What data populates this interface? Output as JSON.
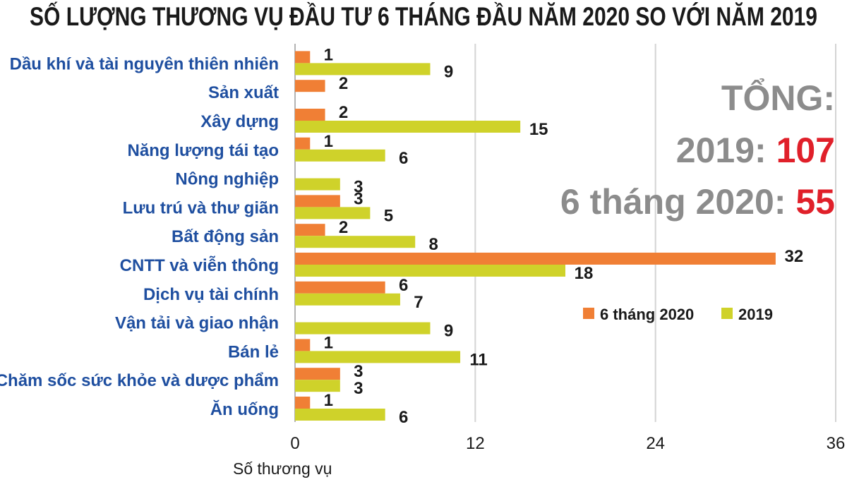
{
  "chart_data": {
    "type": "bar",
    "orientation": "horizontal",
    "title": "SỐ LƯỢNG THƯƠNG VỤ ĐẦU TƯ  6 THÁNG ĐẦU NĂM 2020 SO VỚI  NĂM 2019",
    "xlabel": "Số thương vụ",
    "ylabel": "",
    "xlim": [
      0,
      36
    ],
    "xticks": [
      "0",
      "12",
      "24",
      "36"
    ],
    "grid": true,
    "legend_position": "right-middle",
    "categories": [
      "Dầu khí và tài nguyên thiên nhiên",
      "Sản xuất",
      "Xây dựng",
      "Năng lượng tái tạo",
      "Nông nghiệp",
      "Lưu trú và thư giãn",
      "Bất động sản",
      "CNTT và viễn thông",
      "Dịch vụ tài chính",
      "Vận tải và giao nhận",
      "Bán lẻ",
      "Chăm sốc sức khỏe và dược phẩm",
      "Ăn uống"
    ],
    "series": [
      {
        "name": "6 tháng 2020",
        "color": "#f07f35",
        "values": [
          1,
          2,
          2,
          1,
          null,
          3,
          2,
          32,
          6,
          null,
          1,
          3,
          1
        ]
      },
      {
        "name": "2019",
        "color": "#cfd22a",
        "values": [
          9,
          null,
          15,
          6,
          3,
          5,
          8,
          18,
          7,
          9,
          11,
          3,
          6
        ]
      }
    ]
  },
  "totals": {
    "heading": "TỔNG:",
    "rows": [
      {
        "label": "2019: ",
        "value": "107"
      },
      {
        "label": "6 tháng 2020: ",
        "value": "55"
      }
    ]
  }
}
